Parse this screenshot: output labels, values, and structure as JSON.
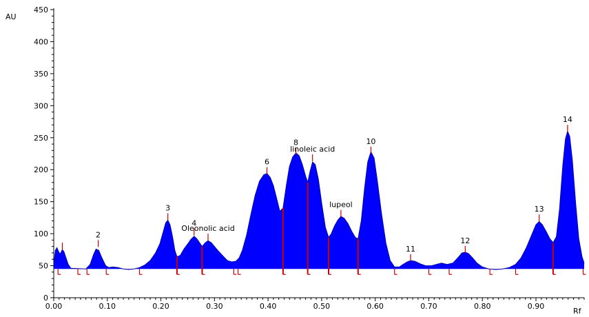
{
  "chart_data": {
    "type": "area",
    "xlabel": "Rf",
    "ylabel": "AU",
    "xlim": [
      0.0,
      0.99
    ],
    "ylim": [
      0,
      450
    ],
    "x_ticks": [
      "0.00",
      "0.10",
      "0.20",
      "0.30",
      "0.40",
      "0.50",
      "0.60",
      "0.70",
      "0.80",
      "0.90"
    ],
    "x_tick_values": [
      0.0,
      0.1,
      0.2,
      0.3,
      0.4,
      0.5,
      0.6,
      0.7,
      0.8,
      0.9
    ],
    "y_ticks": [
      "0",
      "50",
      "100",
      "150",
      "200",
      "250",
      "300",
      "350",
      "400",
      "450"
    ],
    "y_tick_values": [
      0,
      50,
      100,
      150,
      200,
      250,
      300,
      350,
      400,
      450
    ],
    "grid": false,
    "baseline": 45,
    "fill_color": "#0000ff",
    "line_color": "#0000aa",
    "marker_color": "#cc0000",
    "trace": [
      [
        0.0,
        50
      ],
      [
        0.003,
        74
      ],
      [
        0.006,
        78
      ],
      [
        0.009,
        72
      ],
      [
        0.012,
        68
      ],
      [
        0.016,
        75
      ],
      [
        0.019,
        72
      ],
      [
        0.023,
        62
      ],
      [
        0.027,
        52
      ],
      [
        0.032,
        46
      ],
      [
        0.06,
        45
      ],
      [
        0.068,
        52
      ],
      [
        0.074,
        67
      ],
      [
        0.079,
        76
      ],
      [
        0.084,
        74
      ],
      [
        0.09,
        62
      ],
      [
        0.097,
        50
      ],
      [
        0.103,
        47
      ],
      [
        0.11,
        48
      ],
      [
        0.12,
        47
      ],
      [
        0.13,
        45
      ],
      [
        0.14,
        44
      ],
      [
        0.15,
        45
      ],
      [
        0.16,
        47
      ],
      [
        0.17,
        51
      ],
      [
        0.18,
        58
      ],
      [
        0.19,
        70
      ],
      [
        0.198,
        84
      ],
      [
        0.204,
        102
      ],
      [
        0.209,
        117
      ],
      [
        0.213,
        121
      ],
      [
        0.217,
        114
      ],
      [
        0.222,
        94
      ],
      [
        0.226,
        74
      ],
      [
        0.23,
        64
      ],
      [
        0.236,
        66
      ],
      [
        0.243,
        76
      ],
      [
        0.25,
        84
      ],
      [
        0.256,
        91
      ],
      [
        0.262,
        96
      ],
      [
        0.267,
        92
      ],
      [
        0.272,
        86
      ],
      [
        0.277,
        80
      ],
      [
        0.283,
        86
      ],
      [
        0.288,
        89
      ],
      [
        0.294,
        86
      ],
      [
        0.3,
        80
      ],
      [
        0.308,
        72
      ],
      [
        0.316,
        65
      ],
      [
        0.324,
        58
      ],
      [
        0.332,
        56
      ],
      [
        0.34,
        57
      ],
      [
        0.346,
        62
      ],
      [
        0.352,
        74
      ],
      [
        0.36,
        98
      ],
      [
        0.368,
        130
      ],
      [
        0.376,
        160
      ],
      [
        0.384,
        182
      ],
      [
        0.392,
        192
      ],
      [
        0.398,
        194
      ],
      [
        0.404,
        188
      ],
      [
        0.41,
        175
      ],
      [
        0.416,
        155
      ],
      [
        0.422,
        135
      ],
      [
        0.428,
        140
      ],
      [
        0.434,
        175
      ],
      [
        0.44,
        205
      ],
      [
        0.446,
        220
      ],
      [
        0.452,
        226
      ],
      [
        0.458,
        222
      ],
      [
        0.464,
        208
      ],
      [
        0.47,
        190
      ],
      [
        0.474,
        180
      ],
      [
        0.478,
        196
      ],
      [
        0.483,
        212
      ],
      [
        0.488,
        208
      ],
      [
        0.494,
        185
      ],
      [
        0.5,
        148
      ],
      [
        0.507,
        110
      ],
      [
        0.513,
        94
      ],
      [
        0.518,
        100
      ],
      [
        0.524,
        112
      ],
      [
        0.53,
        121
      ],
      [
        0.536,
        127
      ],
      [
        0.542,
        124
      ],
      [
        0.549,
        116
      ],
      [
        0.556,
        104
      ],
      [
        0.563,
        94
      ],
      [
        0.568,
        92
      ],
      [
        0.574,
        120
      ],
      [
        0.58,
        170
      ],
      [
        0.586,
        212
      ],
      [
        0.592,
        228
      ],
      [
        0.598,
        218
      ],
      [
        0.604,
        182
      ],
      [
        0.612,
        130
      ],
      [
        0.62,
        85
      ],
      [
        0.628,
        58
      ],
      [
        0.636,
        48
      ],
      [
        0.645,
        48
      ],
      [
        0.652,
        52
      ],
      [
        0.66,
        56
      ],
      [
        0.666,
        58
      ],
      [
        0.674,
        57
      ],
      [
        0.684,
        53
      ],
      [
        0.694,
        50
      ],
      [
        0.705,
        50
      ],
      [
        0.714,
        52
      ],
      [
        0.724,
        54
      ],
      [
        0.734,
        52
      ],
      [
        0.745,
        54
      ],
      [
        0.754,
        62
      ],
      [
        0.762,
        70
      ],
      [
        0.768,
        71
      ],
      [
        0.774,
        69
      ],
      [
        0.782,
        62
      ],
      [
        0.79,
        54
      ],
      [
        0.8,
        48
      ],
      [
        0.812,
        45
      ],
      [
        0.825,
        44
      ],
      [
        0.838,
        45
      ],
      [
        0.85,
        47
      ],
      [
        0.862,
        52
      ],
      [
        0.872,
        62
      ],
      [
        0.882,
        78
      ],
      [
        0.892,
        98
      ],
      [
        0.9,
        114
      ],
      [
        0.906,
        119
      ],
      [
        0.912,
        114
      ],
      [
        0.92,
        102
      ],
      [
        0.926,
        92
      ],
      [
        0.932,
        86
      ],
      [
        0.938,
        95
      ],
      [
        0.944,
        138
      ],
      [
        0.95,
        206
      ],
      [
        0.955,
        248
      ],
      [
        0.959,
        260
      ],
      [
        0.963,
        252
      ],
      [
        0.968,
        214
      ],
      [
        0.974,
        148
      ],
      [
        0.98,
        92
      ],
      [
        0.986,
        64
      ],
      [
        0.99,
        54
      ]
    ],
    "peaks": [
      {
        "label": "2",
        "rf": 0.083,
        "au": 90
      },
      {
        "label": "3",
        "rf": 0.213,
        "au": 132
      },
      {
        "label": "4",
        "rf": 0.262,
        "au": 108
      },
      {
        "label": "Oleonolic acid",
        "rf": 0.288,
        "au": 100
      },
      {
        "label": "6",
        "rf": 0.398,
        "au": 204
      },
      {
        "label": "8",
        "rf": 0.452,
        "au": 234
      },
      {
        "label": "linoleic acid",
        "rf": 0.483,
        "au": 224
      },
      {
        "label": "lupeol",
        "rf": 0.536,
        "au": 137
      },
      {
        "label": "10",
        "rf": 0.592,
        "au": 236
      },
      {
        "label": "11",
        "rf": 0.666,
        "au": 68
      },
      {
        "label": "12",
        "rf": 0.768,
        "au": 81
      },
      {
        "label": "13",
        "rf": 0.906,
        "au": 130
      },
      {
        "label": "14",
        "rf": 0.959,
        "au": 270
      },
      {
        "label": "",
        "rf": 0.016,
        "au": 86
      }
    ],
    "separators": [
      0.428,
      0.474,
      0.513,
      0.568,
      0.932,
      0.23,
      0.277
    ],
    "integration_limits": [
      0.008,
      0.045,
      0.062,
      0.098,
      0.16,
      0.23,
      0.277,
      0.336,
      0.344,
      0.428,
      0.474,
      0.513,
      0.568,
      0.636,
      0.7,
      0.738,
      0.814,
      0.862,
      0.932,
      0.988
    ]
  }
}
